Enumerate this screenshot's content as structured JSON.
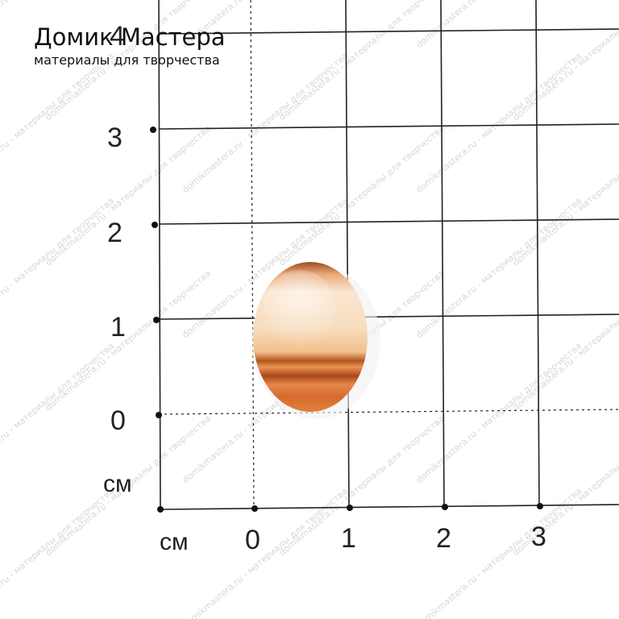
{
  "brand": {
    "title": "Домик Мастера",
    "subtitle": "материалы для творчества"
  },
  "ruler": {
    "y_labels": [
      "4",
      "3",
      "2",
      "1",
      "0"
    ],
    "y_unit": "см",
    "x_unit": "см",
    "x_labels": [
      "0",
      "1",
      "2",
      "3"
    ]
  },
  "watermark": "domikmastera.ru - материалы для творчества"
}
